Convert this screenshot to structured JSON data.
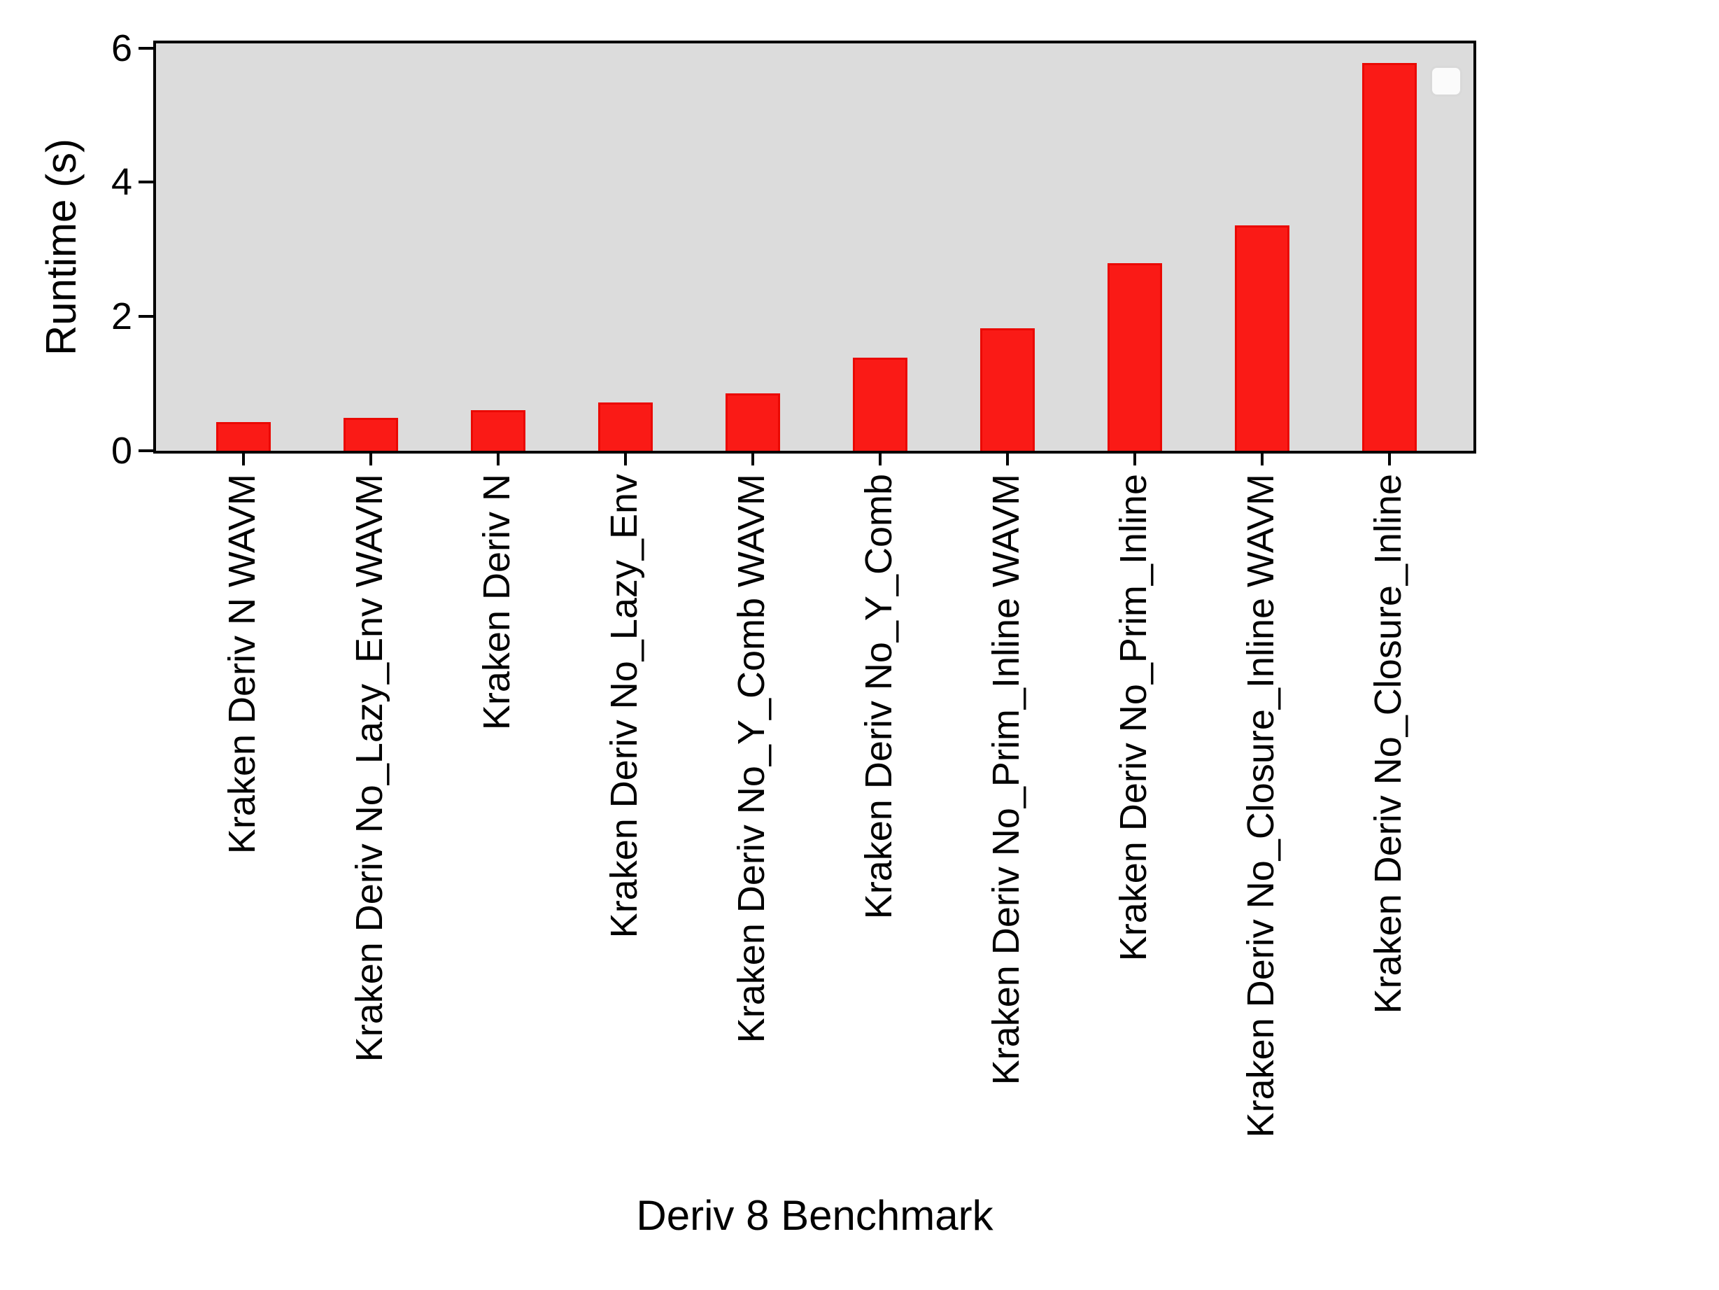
{
  "chart_data": {
    "type": "bar",
    "title": "",
    "xlabel": "Deriv 8 Benchmark",
    "ylabel": "Runtime (s)",
    "categories": [
      "Kraken Deriv N WAVM",
      "Kraken Deriv No_Lazy_Env WAVM",
      "Kraken Deriv N",
      "Kraken Deriv No_Lazy_Env",
      "Kraken Deriv No_Y_Comb WAVM",
      "Kraken Deriv No_Y_Comb",
      "Kraken Deriv No_Prim_Inline WAVM",
      "Kraken Deriv No_Prim_Inline",
      "Kraken Deriv No_Closure_Inline WAVM",
      "Kraken Deriv No_Closure_Inline"
    ],
    "values": [
      0.43,
      0.49,
      0.6,
      0.72,
      0.86,
      1.39,
      1.82,
      2.79,
      3.36,
      5.78
    ],
    "yticks": [
      0,
      2,
      4,
      6
    ],
    "ylim": [
      0,
      6.07
    ],
    "grid": false,
    "legend": {
      "visible": true,
      "position": "upper-right",
      "entries": []
    },
    "colors": {
      "bar_fill": "#fa1a16",
      "bar_edge": "#ea0903",
      "plot_background": "#dcdcdc",
      "figure_background": "#ffffff",
      "axis": "#000000",
      "legend_fill": "#fbfbfb",
      "legend_border": "#d9d9d9"
    }
  }
}
